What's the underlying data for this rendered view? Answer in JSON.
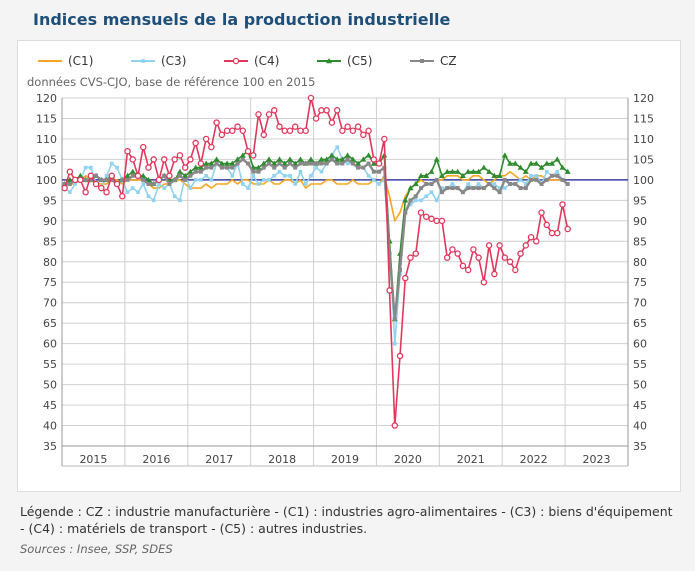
{
  "page_title": "Indices mensuels de la production industrielle",
  "legend_note": "Légende : CZ : industrie manufacturière - (C1) : industries agro-alimentaires - (C3) : biens d'équipement - (C4) : matériels de transport - (C5) : autres industries.",
  "sources": "Sources : Insee, SSP, SDES",
  "chart_data": {
    "type": "line",
    "subtitle": "données CVS-CJO, base de référence 100 en 2015",
    "x_start": "2015-01",
    "frequency": "monthly",
    "x_tick_labels": [
      "2015",
      "2016",
      "2017",
      "2018",
      "2019",
      "2020",
      "2021",
      "2022",
      "2023"
    ],
    "y_ticks": [
      120,
      115,
      110,
      105,
      100,
      95,
      90,
      85,
      80,
      75,
      70,
      65,
      60,
      55,
      50,
      45,
      40,
      35
    ],
    "ylim": [
      35,
      120
    ],
    "reference_line": 100,
    "grid": true,
    "legend_position": "top",
    "series": [
      {
        "name": "(C1)",
        "color": "#f5a623",
        "marker": "none",
        "values": [
          99,
          99,
          99,
          100,
          101,
          100,
          99,
          99,
          99,
          100,
          100,
          99,
          100,
          100,
          100,
          100,
          99,
          98,
          98,
          99,
          99,
          100,
          100,
          99,
          98,
          98,
          98,
          99,
          98,
          99,
          99,
          99,
          100,
          99,
          100,
          100,
          99,
          99,
          99,
          100,
          99,
          99,
          100,
          100,
          99,
          100,
          98,
          99,
          99,
          99,
          100,
          100,
          99,
          99,
          99,
          100,
          99,
          99,
          99,
          100,
          99,
          101,
          96,
          90,
          92,
          96,
          98,
          99,
          100,
          99,
          99,
          100,
          100,
          101,
          101,
          101,
          100,
          100,
          101,
          101,
          100,
          99,
          100,
          101,
          101,
          102,
          101,
          100,
          101,
          100,
          101,
          101,
          100,
          100,
          100,
          100,
          99
        ]
      },
      {
        "name": "(C3)",
        "color": "#8fd3f0",
        "marker": "dot",
        "values": [
          98,
          97,
          99,
          100,
          103,
          103,
          99,
          98,
          101,
          104,
          103,
          100,
          97,
          98,
          97,
          99,
          96,
          95,
          99,
          98,
          99,
          96,
          95,
          101,
          98,
          100,
          100,
          101,
          100,
          104,
          103,
          103,
          101,
          104,
          99,
          98,
          101,
          99,
          100,
          100,
          101,
          102,
          101,
          101,
          99,
          102,
          99,
          101,
          103,
          102,
          104,
          106,
          108,
          105,
          104,
          104,
          103,
          103,
          101,
          100,
          99,
          100,
          85,
          60,
          77,
          92,
          94,
          95,
          95,
          96,
          97,
          95,
          98,
          98,
          99,
          98,
          97,
          99,
          98,
          99,
          98,
          99,
          99,
          98,
          98,
          99,
          99,
          100,
          99,
          101,
          101,
          99,
          102,
          101,
          102,
          100,
          99
        ]
      },
      {
        "name": "(C4)",
        "color": "#e0385c",
        "marker": "circle",
        "values": [
          98,
          102,
          100,
          100,
          97,
          101,
          99,
          98,
          97,
          101,
          99,
          96,
          107,
          105,
          101,
          108,
          103,
          105,
          100,
          105,
          101,
          105,
          106,
          103,
          105,
          109,
          104,
          110,
          108,
          114,
          111,
          112,
          112,
          113,
          112,
          107,
          106,
          116,
          111,
          116,
          117,
          113,
          112,
          112,
          113,
          112,
          112,
          120,
          115,
          117,
          117,
          114,
          117,
          112,
          113,
          112,
          113,
          111,
          112,
          105,
          104,
          110,
          73,
          40,
          57,
          76,
          81,
          82,
          92,
          91,
          90.5,
          90,
          90,
          81,
          83,
          82,
          79,
          78,
          83,
          81,
          75,
          84,
          77,
          84,
          81,
          80,
          78,
          82,
          84,
          86,
          85,
          92,
          89,
          87,
          87,
          94,
          88
        ]
      },
      {
        "name": "(C5)",
        "color": "#2e8b2e",
        "marker": "triangle",
        "values": [
          99,
          100,
          100,
          101,
          100,
          100,
          101,
          100,
          100,
          101,
          99,
          100,
          101,
          102,
          101,
          101,
          100,
          99,
          100,
          101,
          100,
          100,
          102,
          101,
          102,
          103,
          103,
          104,
          104,
          105,
          104,
          104,
          104,
          105,
          106,
          107,
          103,
          103,
          104,
          105,
          104,
          105,
          104,
          105,
          104,
          105,
          104,
          105,
          104,
          105,
          105,
          106,
          105,
          105,
          106,
          105,
          104,
          105,
          106,
          104,
          104,
          106,
          85,
          66,
          82,
          95,
          98,
          99,
          101,
          101,
          102,
          105,
          101,
          102,
          102,
          102,
          101,
          102,
          102,
          102,
          103,
          102,
          101,
          101,
          106,
          104,
          104,
          103,
          102,
          104,
          104,
          103,
          104,
          104,
          105,
          103,
          102
        ]
      },
      {
        "name": "CZ",
        "color": "#888888",
        "marker": "square",
        "values": [
          99,
          99,
          100,
          100,
          100,
          100,
          101,
          100,
          100,
          100,
          99,
          100,
          100,
          101,
          101,
          100,
          99,
          99,
          100,
          101,
          99,
          100,
          101,
          100,
          101,
          102,
          102,
          103,
          103,
          104,
          103,
          103,
          103,
          104,
          105,
          104,
          102,
          102,
          103,
          104,
          103,
          104,
          103,
          104,
          103,
          104,
          104,
          104,
          104,
          104,
          104,
          105,
          104,
          104,
          105,
          104,
          103,
          103,
          104,
          102,
          102,
          103,
          82,
          66,
          78,
          92,
          95,
          96,
          98,
          99,
          99,
          100,
          97,
          98,
          98,
          98,
          97,
          98,
          98,
          98,
          98,
          99,
          98,
          97,
          100,
          99,
          99,
          98,
          98,
          100,
          100,
          99,
          100,
          101,
          101,
          100,
          99
        ]
      }
    ]
  }
}
